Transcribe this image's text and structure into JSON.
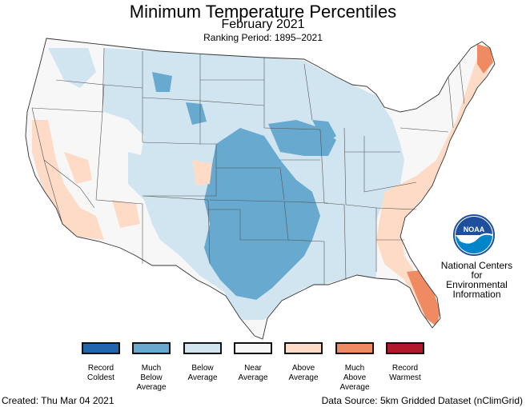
{
  "title": "Minimum Temperature Percentiles",
  "subtitle": "February 2021",
  "ranking_period": "Ranking Period: 1895–2021",
  "logo": {
    "text": "NOAA",
    "org_line1": "National Centers for",
    "org_line2": "Environmental",
    "org_line3": "Information"
  },
  "legend": [
    {
      "label1": "Record",
      "label2": "Coldest",
      "label3": "",
      "color": "#2166ac"
    },
    {
      "label1": "Much",
      "label2": "Below",
      "label3": "Average",
      "color": "#67a9cf"
    },
    {
      "label1": "Below",
      "label2": "Average",
      "label3": "",
      "color": "#d1e5f0"
    },
    {
      "label1": "Near",
      "label2": "Average",
      "label3": "",
      "color": "#f7f7f7"
    },
    {
      "label1": "Above",
      "label2": "Average",
      "label3": "",
      "color": "#fddbc7"
    },
    {
      "label1": "Much",
      "label2": "Above",
      "label3": "Average",
      "color": "#ef8a62"
    },
    {
      "label1": "Record",
      "label2": "Warmest",
      "label3": "",
      "color": "#b2182b"
    }
  ],
  "footer": {
    "created": "Created: Thu Mar 04 2021",
    "source": "Data Source: 5km Gridded Dataset (nClimGrid)"
  }
}
